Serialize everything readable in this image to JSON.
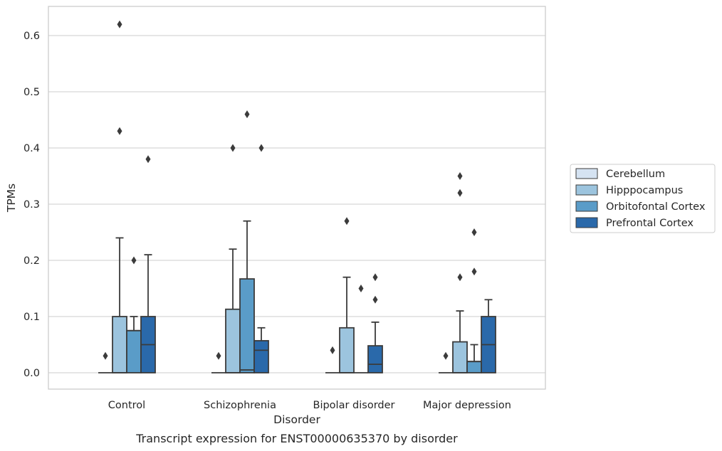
{
  "chart_data": {
    "type": "box",
    "title": "",
    "caption": "Transcript expression for ENST00000635370 by disorder",
    "xlabel": "Disorder",
    "ylabel": "TPMs",
    "ylim": [
      -0.03,
      0.65
    ],
    "yticks": [
      "0.0",
      "0.1",
      "0.2",
      "0.3",
      "0.4",
      "0.5",
      "0.6"
    ],
    "grid": "horizontal",
    "legend_position": "right",
    "categories": [
      "Control",
      "Schizophrenia",
      "Bipolar disorder",
      "Major depression"
    ],
    "series": [
      {
        "name": "Cerebellum",
        "color": "#d5e3f2",
        "boxes": [
          {
            "q1": 0,
            "median": 0,
            "q3": 0,
            "whislo": 0,
            "whishi": 0,
            "fliers": [
              0.03
            ]
          },
          {
            "q1": 0,
            "median": 0,
            "q3": 0,
            "whislo": 0,
            "whishi": 0,
            "fliers": [
              0.03
            ]
          },
          {
            "q1": 0,
            "median": 0,
            "q3": 0,
            "whislo": 0,
            "whishi": 0,
            "fliers": [
              0.04
            ]
          },
          {
            "q1": 0,
            "median": 0,
            "q3": 0,
            "whislo": 0,
            "whishi": 0,
            "fliers": [
              0.03
            ]
          }
        ]
      },
      {
        "name": "Hipppocampus",
        "color": "#9cc4de",
        "boxes": [
          {
            "q1": 0,
            "median": 0,
            "q3": 0.1,
            "whislo": 0,
            "whishi": 0.24,
            "fliers": [
              0.62,
              0.43
            ]
          },
          {
            "q1": 0,
            "median": 0,
            "q3": 0.113,
            "whislo": 0,
            "whishi": 0.22,
            "fliers": [
              0.4
            ]
          },
          {
            "q1": 0,
            "median": 0,
            "q3": 0.08,
            "whislo": 0,
            "whishi": 0.17,
            "fliers": [
              0.27
            ]
          },
          {
            "q1": 0,
            "median": 0,
            "q3": 0.055,
            "whislo": 0,
            "whishi": 0.11,
            "fliers": [
              0.35,
              0.32,
              0.17
            ]
          }
        ]
      },
      {
        "name": "Orbitofontal Cortex",
        "color": "#5a9cc8",
        "boxes": [
          {
            "q1": 0,
            "median": 0.075,
            "q3": 0.075,
            "whislo": 0,
            "whishi": 0.1,
            "fliers": [
              0.2
            ]
          },
          {
            "q1": 0,
            "median": 0.005,
            "q3": 0.167,
            "whislo": 0,
            "whishi": 0.27,
            "fliers": [
              0.46
            ]
          },
          {
            "q1": 0,
            "median": 0,
            "q3": 0,
            "whislo": 0,
            "whishi": 0,
            "fliers": [
              0.15
            ]
          },
          {
            "q1": 0,
            "median": 0.02,
            "q3": 0.02,
            "whislo": 0,
            "whishi": 0.05,
            "fliers": [
              0.25,
              0.18
            ]
          }
        ]
      },
      {
        "name": "Prefrontal Cortex",
        "color": "#2a69aa",
        "boxes": [
          {
            "q1": 0,
            "median": 0.05,
            "q3": 0.1,
            "whislo": 0,
            "whishi": 0.21,
            "fliers": [
              0.38
            ]
          },
          {
            "q1": 0,
            "median": 0.04,
            "q3": 0.057,
            "whislo": 0,
            "whishi": 0.08,
            "fliers": [
              0.4
            ]
          },
          {
            "q1": 0,
            "median": 0.015,
            "q3": 0.048,
            "whislo": 0,
            "whishi": 0.09,
            "fliers": [
              0.17,
              0.13
            ]
          },
          {
            "q1": 0,
            "median": 0.05,
            "q3": 0.1,
            "whislo": 0,
            "whishi": 0.13,
            "fliers": []
          }
        ]
      }
    ]
  }
}
